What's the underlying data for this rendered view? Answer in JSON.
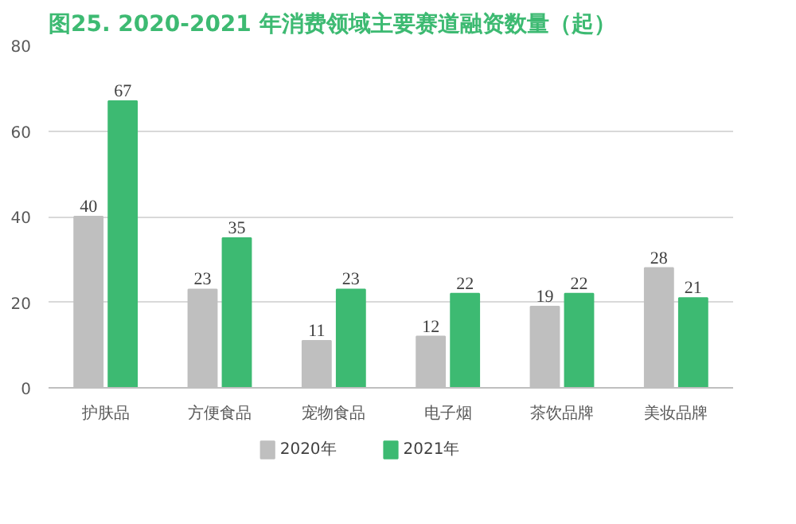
{
  "chart_data": {
    "type": "bar",
    "title": "图25.   2020-2021 年消费领域主要赛道融资数量（起）",
    "categories": [
      "护肤品",
      "方便食品",
      "宠物食品",
      "电子烟",
      "茶饮品牌",
      "美妆品牌"
    ],
    "series": [
      {
        "name": "2020年",
        "color": "#bfbfbf",
        "values": [
          40,
          23,
          11,
          12,
          19,
          28
        ]
      },
      {
        "name": "2021年",
        "color": "#3dba72",
        "values": [
          67,
          35,
          23,
          22,
          22,
          21
        ]
      }
    ],
    "ylim": [
      0,
      80
    ],
    "yticks": [
      0,
      20,
      40,
      60,
      80
    ],
    "grid": "y",
    "legend": "bottom",
    "data_labels": true
  }
}
